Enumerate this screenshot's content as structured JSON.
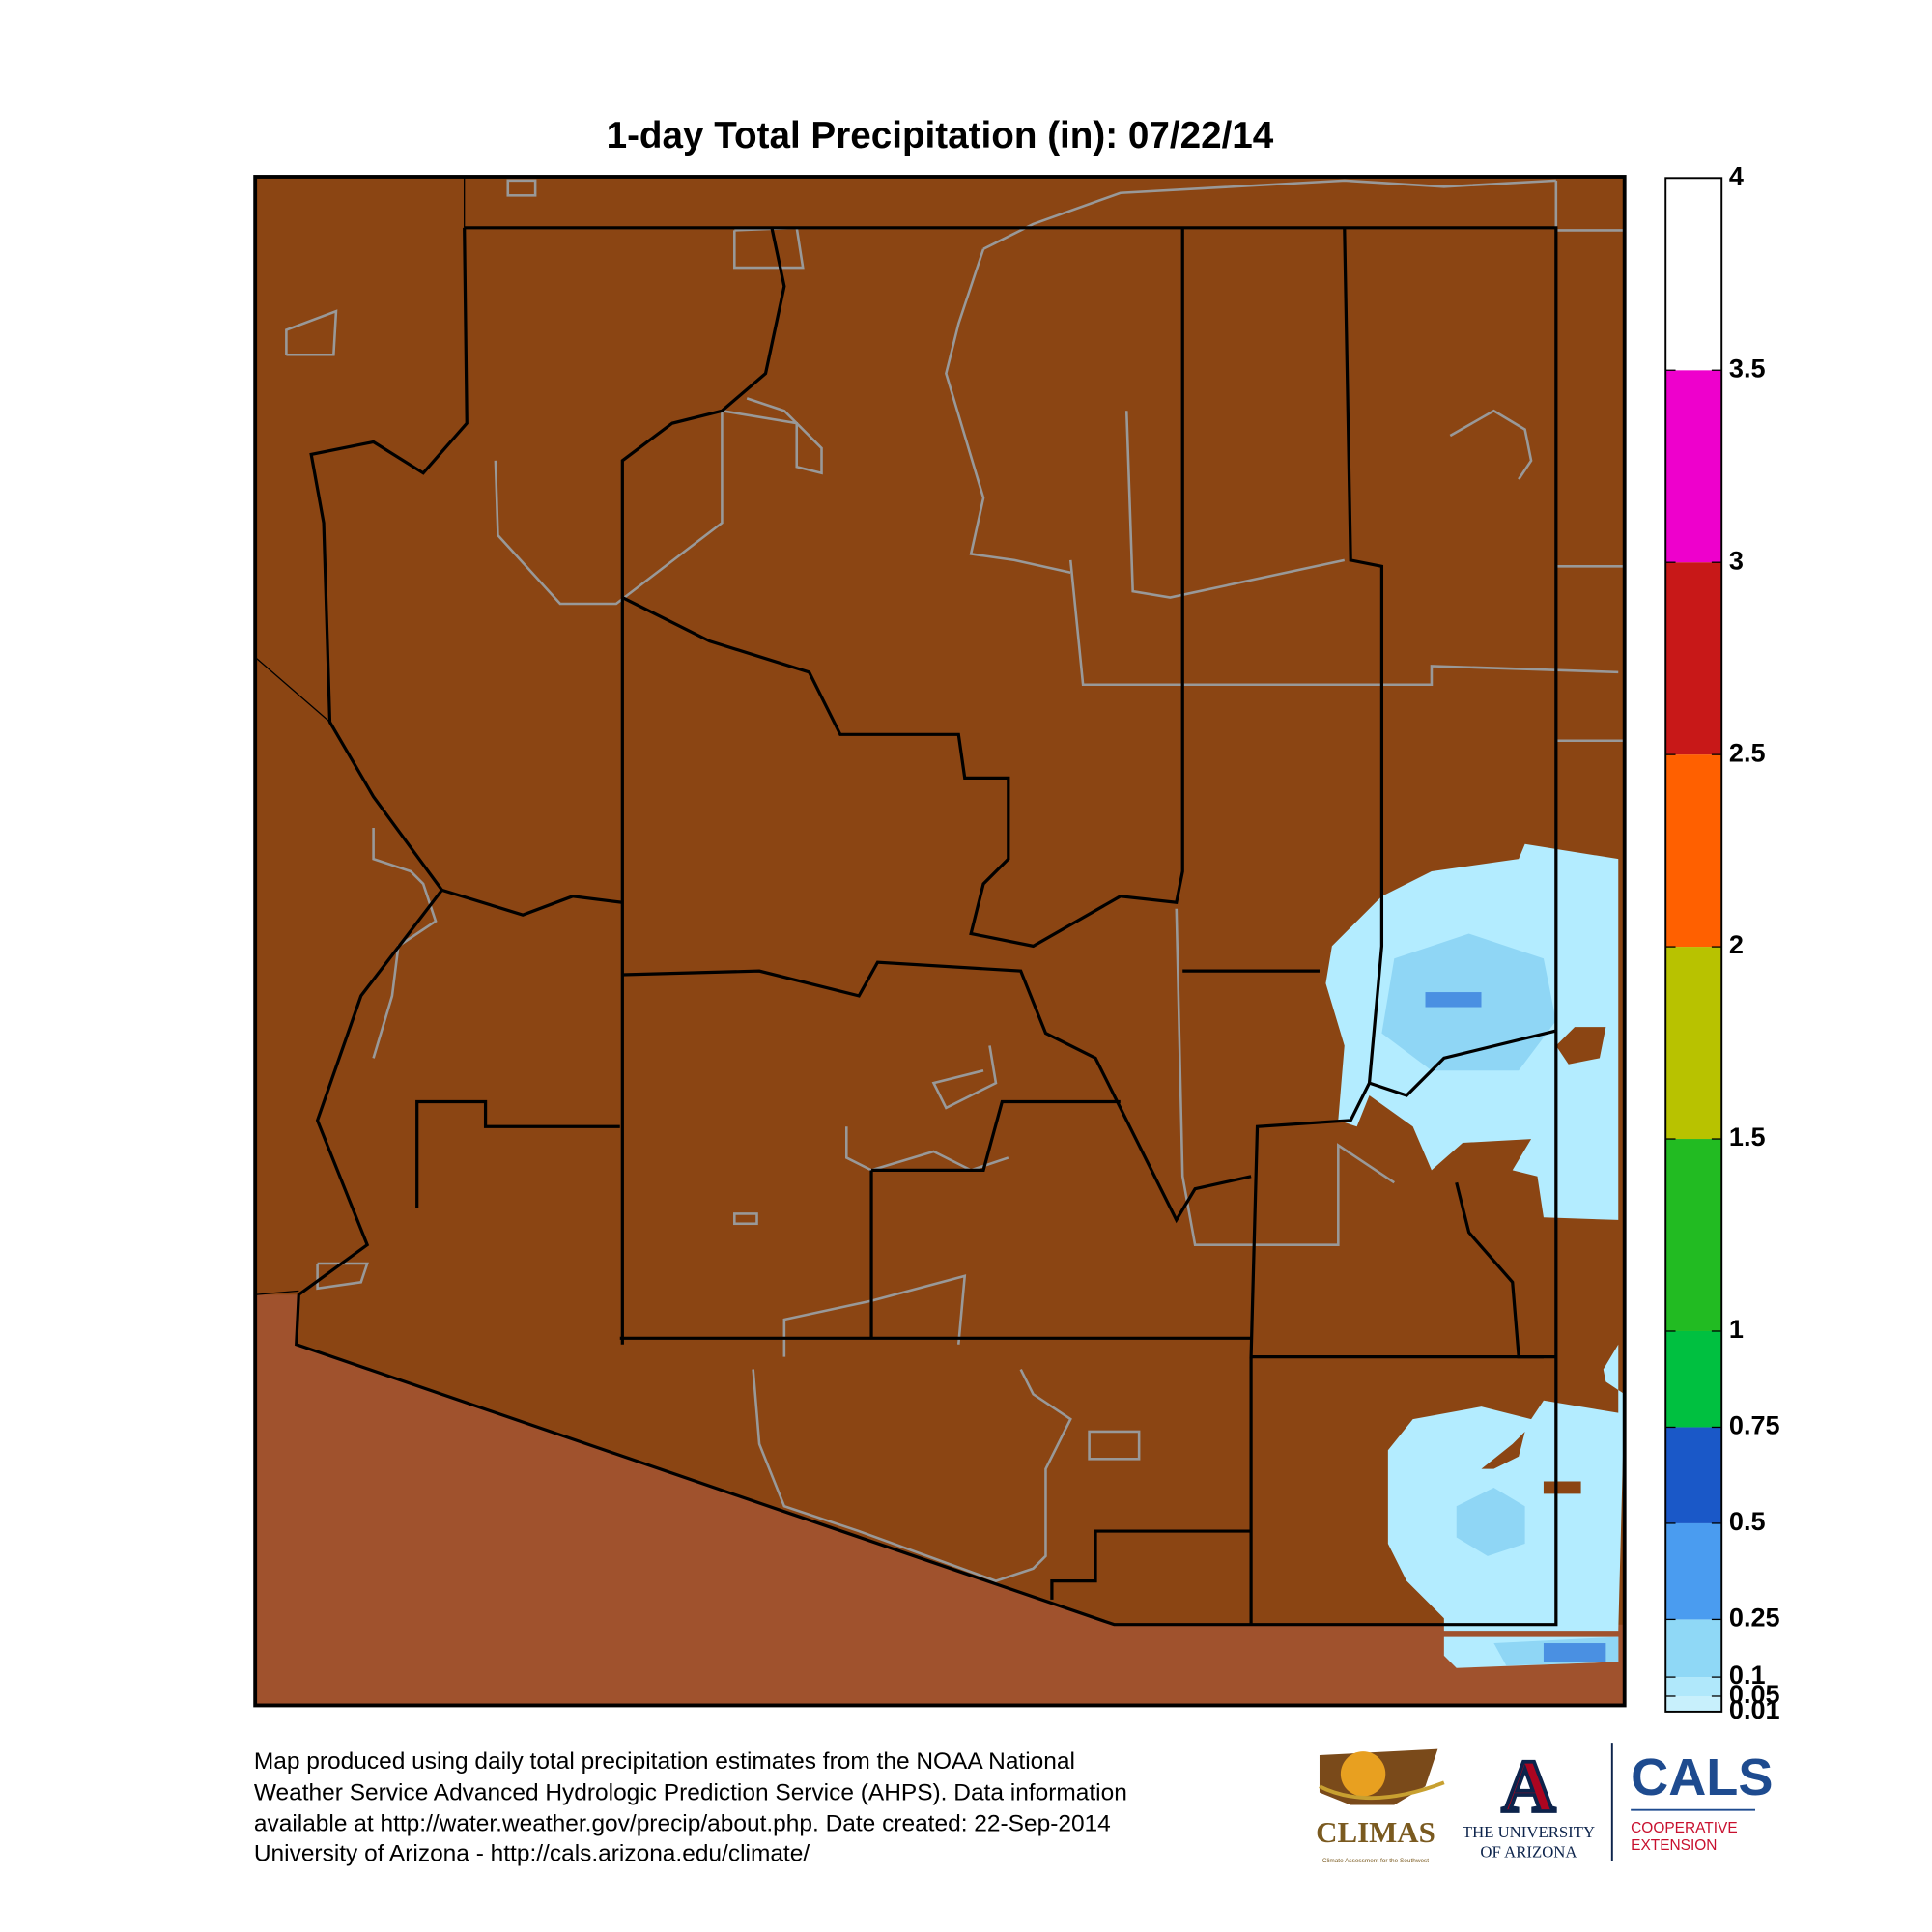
{
  "title": "1-day Total Precipitation (in): 07/22/14",
  "colorbar": {
    "range": [
      0.01,
      4
    ],
    "ticks": [
      0.01,
      0.05,
      0.1,
      0.25,
      0.5,
      0.75,
      1,
      1.5,
      2,
      2.5,
      3,
      3.5,
      4
    ],
    "colors": [
      "#c8f0fc",
      "#b0e8fb",
      "#8fd8f6",
      "#4a9cf0",
      "#1a58c8",
      "#00c040",
      "#22bb22",
      "#b8c200",
      "#ff6000",
      "#c81818",
      "#ee00cc",
      "#ffffff"
    ]
  },
  "footer": [
    "Map produced using daily total precipitation estimates from the NOAA National",
    "Weather Service Advanced Hydrologic Prediction Service (AHPS). Data information",
    "available at http://water.weather.gov/precip/about.php. Date created: 22-Sep-2014",
    "University of Arizona - http://cals.arizona.edu/climate/"
  ],
  "logos": {
    "climas": "CLIMAS",
    "climas_sub": "Climate Assessment for the Southwest",
    "ua_letter": "A",
    "ua_line1": "THE UNIVERSITY",
    "ua_line2": "OF ARIZONA",
    "cals": "CALS",
    "cals_line1": "COOPERATIVE",
    "cals_line2": "EXTENSION"
  }
}
